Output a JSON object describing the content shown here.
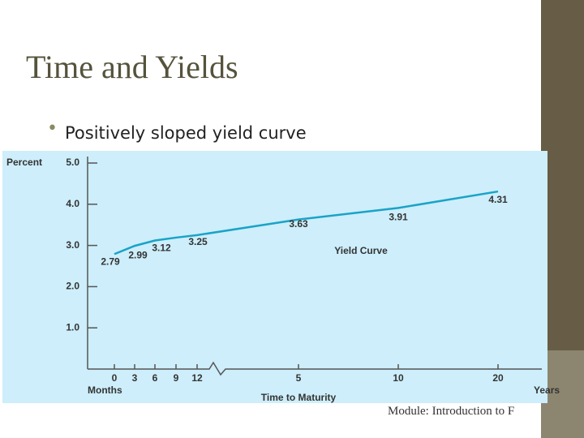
{
  "slide": {
    "title": "Time and Yields",
    "bullet": "Positively sloped yield curve",
    "footer": "Module: Introduction to F"
  },
  "chart_data": {
    "type": "line",
    "y_label": "Percent",
    "x_label": "Time to Maturity",
    "x_unit_left": "Months",
    "x_unit_right": "Years",
    "annotation": "Yield Curve",
    "categories": [
      "0",
      "3",
      "6",
      "9",
      "12",
      "5",
      "10",
      "20"
    ],
    "series": [
      {
        "name": "Yield Curve",
        "color": "#1aa3c8",
        "values": [
          2.79,
          2.99,
          3.12,
          3.19,
          3.25,
          3.63,
          3.91,
          4.31
        ],
        "value_labels": [
          "2.79",
          "2.99",
          "3.12",
          null,
          "3.25",
          "3.63",
          "3.91",
          "4.31"
        ]
      }
    ],
    "ylim": [
      0,
      5
    ],
    "yticks": [
      {
        "value": 1,
        "label": "1.0"
      },
      {
        "value": 2,
        "label": "2.0"
      },
      {
        "value": 3,
        "label": "3.0"
      },
      {
        "value": 4,
        "label": "4.0"
      },
      {
        "value": 5,
        "label": "5.0"
      }
    ]
  }
}
